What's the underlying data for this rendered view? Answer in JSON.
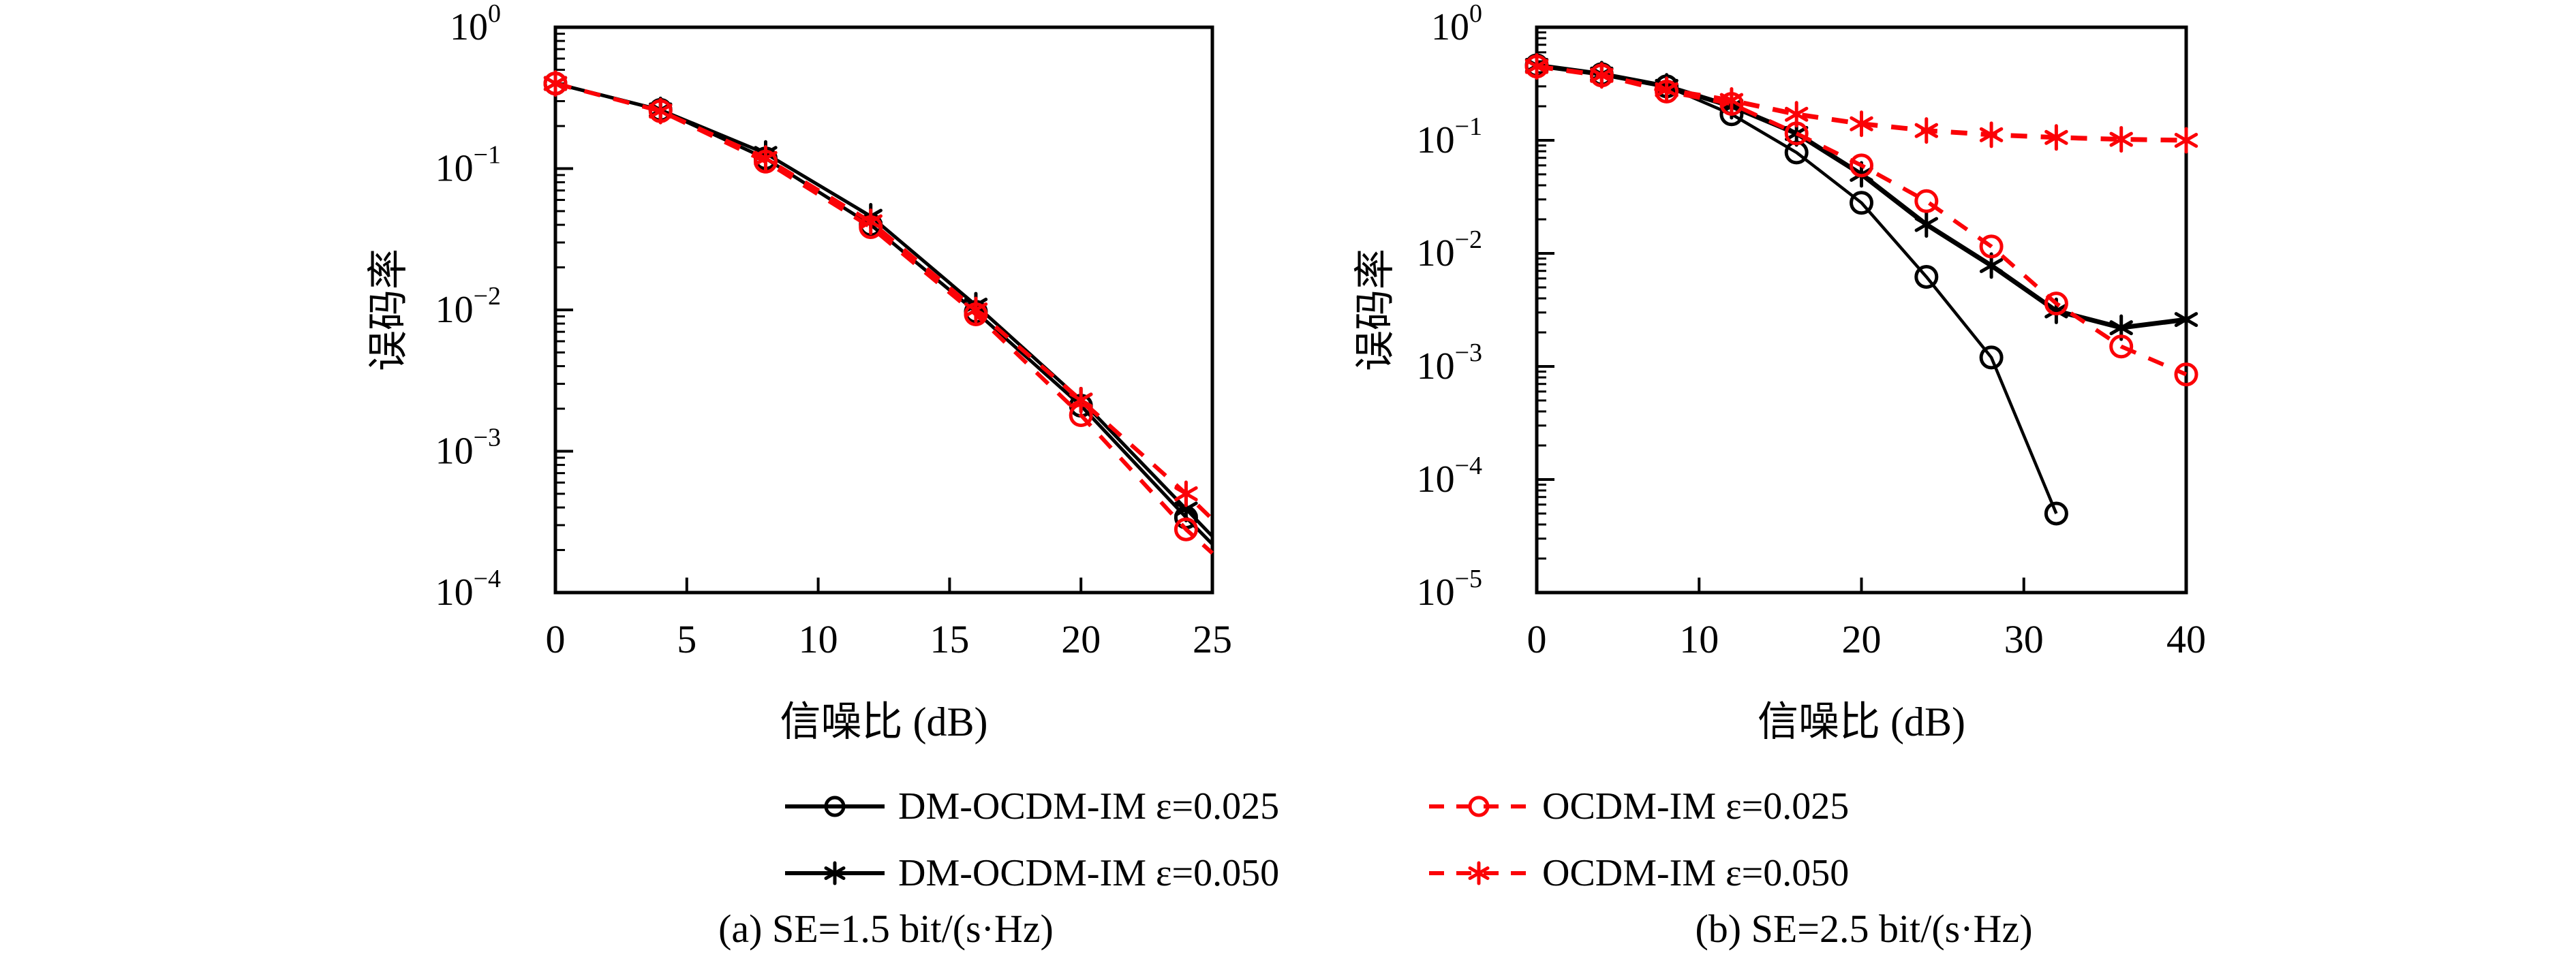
{
  "legend": {
    "items": [
      {
        "label": "DM-OCDM-IM ε=0.025",
        "color": "#000000",
        "line": "solid",
        "marker": "circle"
      },
      {
        "label": "OCDM-IM ε=0.025",
        "color": "#fb0207",
        "line": "dashed",
        "marker": "circle"
      },
      {
        "label": "DM-OCDM-IM ε=0.050",
        "color": "#000000",
        "line": "solid",
        "marker": "asterisk"
      },
      {
        "label": "OCDM-IM ε=0.050",
        "color": "#fb0207",
        "line": "dashed",
        "marker": "asterisk"
      }
    ]
  },
  "captions": {
    "a": "(a) SE=1.5 bit/(s·Hz)",
    "b": "(b) SE=2.5 bit/(s·Hz)"
  },
  "chart_data": [
    {
      "type": "line",
      "title": "(a) SE=1.5 bit/(s·Hz)",
      "xlabel": "信噪比 (dB)",
      "ylabel": "误码率",
      "xlim": [
        0,
        25
      ],
      "xticks": [
        0,
        5,
        10,
        15,
        20,
        25
      ],
      "ylog_exponents": [
        0,
        -1,
        -2,
        -3,
        -4
      ],
      "grid": false,
      "x": [
        0,
        4,
        8,
        12,
        16,
        20,
        24
      ],
      "series": [
        {
          "name": "DM-OCDM-IM ε=0.025",
          "color": "#000000",
          "line": "solid",
          "marker": "circle",
          "width": 5,
          "values": [
            0.4,
            0.26,
            0.118,
            0.04,
            0.0097,
            0.0021,
            0.00034
          ],
          "tail": [
            25,
            0.00022
          ]
        },
        {
          "name": "DM-OCDM-IM ε=0.050",
          "color": "#000000",
          "line": "solid",
          "marker": "asterisk",
          "width": 5,
          "values": [
            0.4,
            0.26,
            0.128,
            0.046,
            0.0108,
            0.0023,
            0.00039
          ],
          "tail": [
            25,
            0.00025
          ]
        },
        {
          "name": "OCDM-IM ε=0.025",
          "color": "#fb0207",
          "line": "dashed",
          "marker": "circle",
          "width": 6,
          "values": [
            0.4,
            0.255,
            0.112,
            0.0385,
            0.0093,
            0.0018,
            0.00028
          ],
          "tail": [
            25,
            0.00019
          ]
        },
        {
          "name": "OCDM-IM ε=0.050",
          "color": "#fb0207",
          "line": "dashed",
          "marker": "asterisk",
          "width": 6,
          "values": [
            0.4,
            0.255,
            0.118,
            0.042,
            0.01,
            0.0023,
            0.0005
          ],
          "tail": [
            25,
            0.00033
          ]
        }
      ]
    },
    {
      "type": "line",
      "title": "(b) SE=2.5 bit/(s·Hz)",
      "xlabel": "信噪比 (dB)",
      "ylabel": "误码率",
      "xlim": [
        0,
        40
      ],
      "xticks": [
        0,
        10,
        20,
        30,
        40
      ],
      "ylog_exponents": [
        0,
        -1,
        -2,
        -3,
        -4,
        -5
      ],
      "grid": false,
      "x": [
        0,
        4,
        8,
        12,
        16,
        20,
        24,
        28,
        32,
        36,
        40
      ],
      "series": [
        {
          "name": "DM-OCDM-IM ε=0.025",
          "color": "#000000",
          "line": "solid",
          "marker": "circle",
          "width": 4.5,
          "values": [
            0.46,
            0.385,
            0.3,
            0.17,
            0.078,
            0.028,
            0.0062,
            0.0012,
            5e-05
          ]
        },
        {
          "name": "DM-OCDM-IM ε=0.050",
          "color": "#000000",
          "line": "solid",
          "marker": "asterisk",
          "width": 7,
          "values": [
            0.46,
            0.385,
            0.3,
            0.2,
            0.115,
            0.05,
            0.018,
            0.0078,
            0.0031,
            0.0022,
            0.0026
          ]
        },
        {
          "name": "OCDM-IM ε=0.025",
          "color": "#fb0207",
          "line": "dashed",
          "marker": "circle",
          "width": 6,
          "values": [
            0.45,
            0.375,
            0.27,
            0.21,
            0.115,
            0.06,
            0.029,
            0.0115,
            0.0036,
            0.0015,
            0.00085
          ]
        },
        {
          "name": "OCDM-IM ε=0.050",
          "color": "#fb0207",
          "line": "dashed",
          "marker": "asterisk",
          "width": 7,
          "values": [
            0.45,
            0.375,
            0.28,
            0.225,
            0.17,
            0.14,
            0.122,
            0.112,
            0.106,
            0.102,
            0.1
          ]
        }
      ]
    }
  ]
}
